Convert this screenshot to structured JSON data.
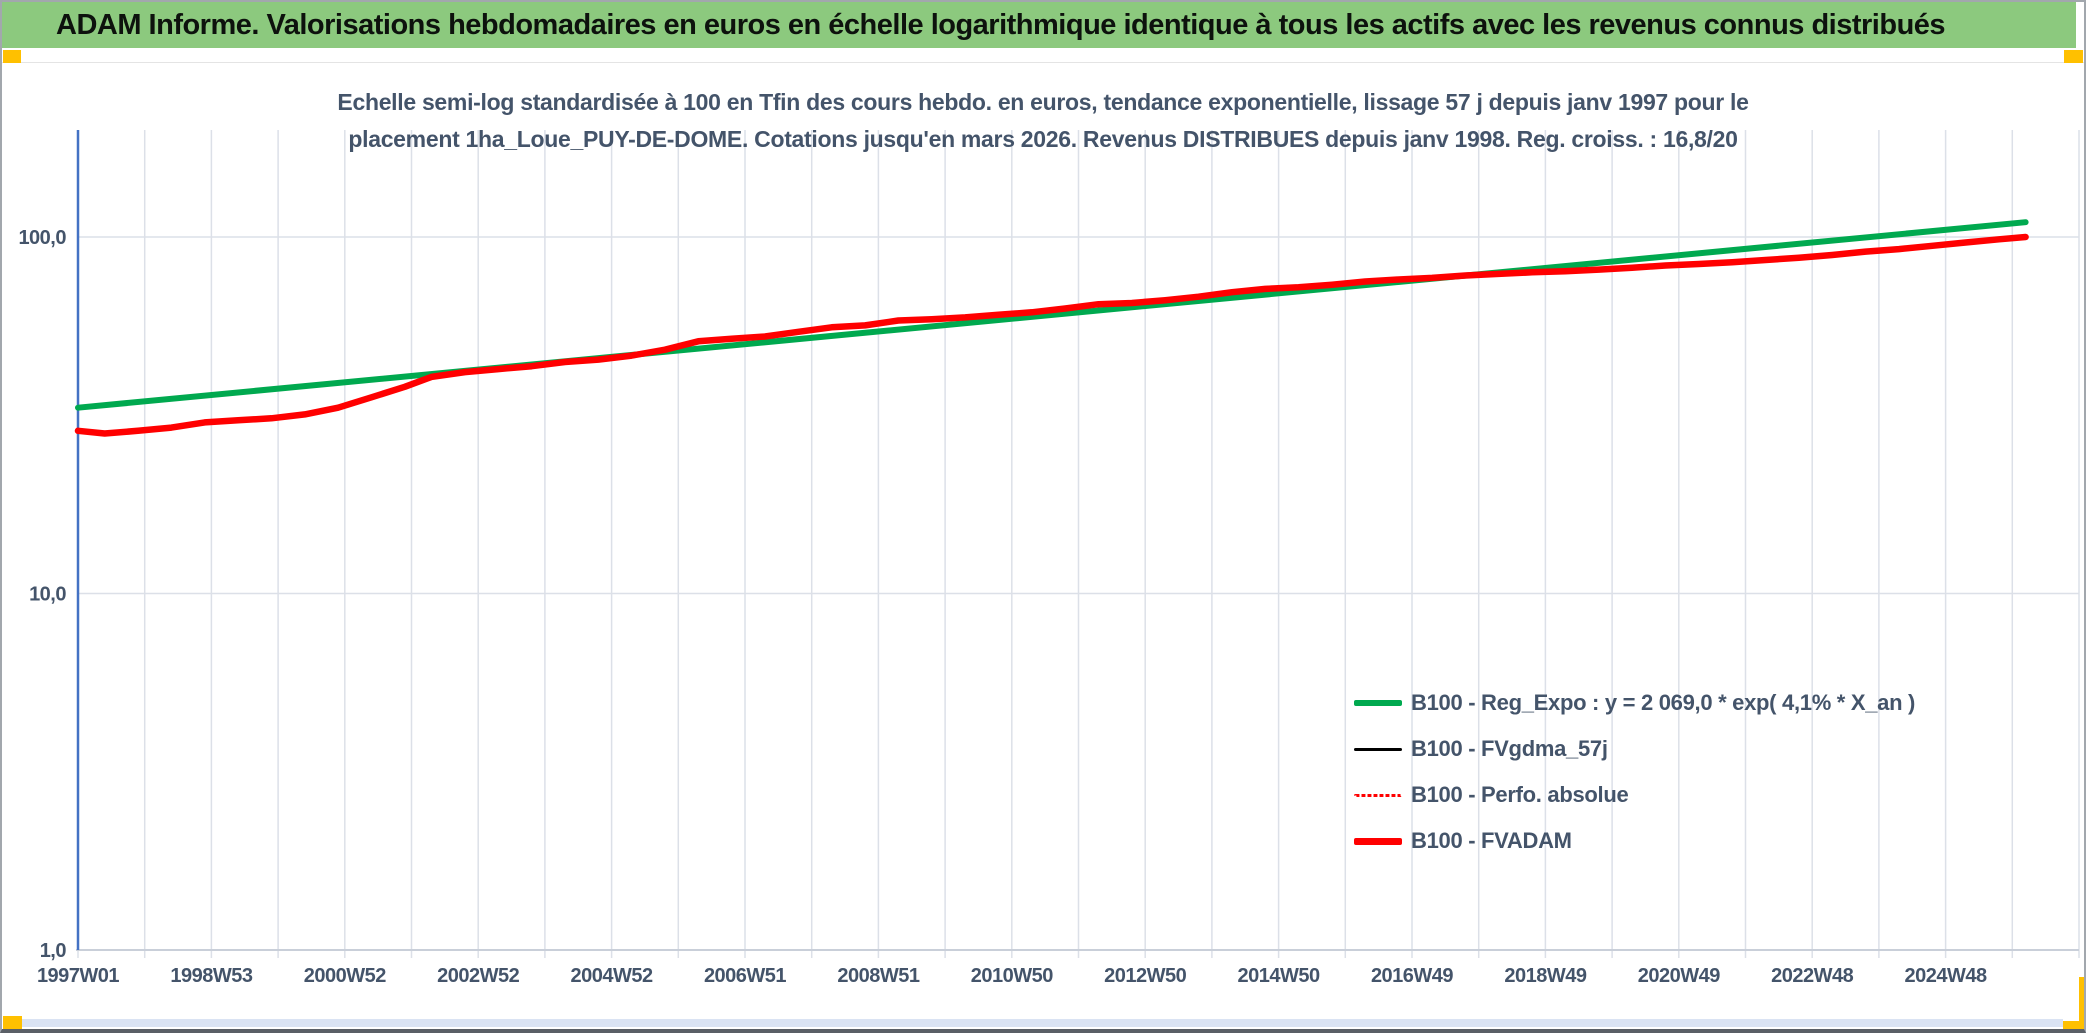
{
  "banner": {
    "title": "ADAM Informe. Valorisations hebdomadaires en euros en échelle logarithmique identique à tous les actifs avec les revenus connus distribués",
    "bg_color": "#8cc97e",
    "accent_color": "#ffc000"
  },
  "chart": {
    "subtitle_line1": "Echelle semi-log standardisée à 100 en Tfin des cours hebdo. en euros, tendance exponentielle, lissage 57 j depuis janv 1997 pour le",
    "subtitle_line2": "placement 1ha_Loue_PUY-DE-DOME. Cotations jusqu'en mars 2026. Revenus DISTRIBUES depuis janv 1998. Reg. croiss. : 16,8/20"
  },
  "legend": {
    "items": [
      {
        "label": "B100 - Reg_Expo : y = 2 069,0 * exp( 4,1% *  X_an )",
        "color": "#00a94f",
        "style": "solid",
        "width": 6
      },
      {
        "label": "B100 - FVgdma_57j",
        "color": "#000000",
        "style": "solid",
        "width": 3
      },
      {
        "label": "B100 - Perfo. absolue",
        "color": "#ff0000",
        "style": "dotted",
        "width": 3
      },
      {
        "label": "B100 - FVADAM",
        "color": "#ff0000",
        "style": "solid",
        "width": 7
      }
    ]
  },
  "chart_data": {
    "type": "line",
    "title": "Echelle semi-log standardisée à 100 en Tfin des cours hebdo. en euros, tendance exponentielle, lissage 57 j depuis janv 1997 pour le placement 1ha_Loue_PUY-DE-DOME. Cotations jusqu'en mars 2026. Revenus DISTRIBUES depuis janv 1998. Reg. croiss. : 16,8/20",
    "x_axis": {
      "type": "weekly-categories",
      "tick_labels": [
        "1997W01",
        "1998W53",
        "2000W52",
        "2002W52",
        "2004W52",
        "2006W51",
        "2008W51",
        "2010W50",
        "2012W50",
        "2014W50",
        "2016W49",
        "2018W49",
        "2020W49",
        "2022W48",
        "2024W48"
      ],
      "tick_step_years": 2,
      "grid_step_years": 1,
      "range_years": [
        1997,
        2027
      ]
    },
    "y_axis": {
      "scale": "log",
      "tick_values": [
        1,
        10,
        100
      ],
      "tick_labels": [
        "1,0",
        "10,0",
        "100,0"
      ],
      "range": [
        1,
        200
      ]
    },
    "legend_position": "inside-bottom-right",
    "grid": true,
    "series": [
      {
        "id": "reg_expo",
        "name": "B100 - Reg_Expo : y = 2 069,0 * exp( 4,1% *  X_an )",
        "color": "#00a94f",
        "style": "solid",
        "width": 6,
        "x": [
          1997.0,
          2026.2
        ],
        "y": [
          33.2,
          110.0
        ]
      },
      {
        "id": "fvgdma_57j",
        "name": "B100 - FVgdma_57j",
        "color": "#000000",
        "style": "solid",
        "width": 3.5,
        "note": "coincides with FVADAM curve (hidden beneath it)",
        "data_ref": "fvadam"
      },
      {
        "id": "perfo_absolue",
        "name": "B100 - Perfo. absolue",
        "color": "#ff0000",
        "style": "dotted",
        "width": 2.5,
        "note": "coincides with FVADAM curve (hidden beneath it)",
        "data_ref": "fvadam"
      },
      {
        "id": "fvadam",
        "name": "B100 - FVADAM",
        "color": "#ff0000",
        "style": "solid",
        "width": 6.5,
        "x": [
          1997.0,
          1997.4,
          1997.9,
          1998.4,
          1998.9,
          1999.4,
          1999.9,
          2000.4,
          2000.9,
          2001.4,
          2001.9,
          2002.3,
          2002.8,
          2003.3,
          2003.8,
          2004.3,
          2004.8,
          2005.3,
          2005.8,
          2006.3,
          2006.8,
          2007.3,
          2007.8,
          2008.3,
          2008.8,
          2009.3,
          2009.8,
          2010.3,
          2010.8,
          2011.3,
          2011.8,
          2012.3,
          2012.8,
          2013.3,
          2013.8,
          2014.3,
          2014.8,
          2015.3,
          2015.8,
          2016.3,
          2016.8,
          2017.3,
          2017.8,
          2018.3,
          2018.8,
          2019.3,
          2019.8,
          2020.3,
          2020.8,
          2021.3,
          2021.8,
          2022.3,
          2022.8,
          2023.3,
          2023.8,
          2024.3,
          2024.8,
          2025.3,
          2025.8,
          2026.2
        ],
        "y": [
          28.6,
          28.1,
          28.6,
          29.2,
          30.2,
          30.6,
          31.0,
          31.8,
          33.2,
          35.5,
          38.0,
          40.5,
          41.8,
          42.6,
          43.4,
          44.6,
          45.3,
          46.5,
          48.3,
          51.0,
          51.8,
          52.6,
          54.2,
          55.8,
          56.5,
          58.3,
          58.8,
          59.5,
          60.5,
          61.5,
          63.0,
          64.8,
          65.3,
          66.5,
          68.0,
          70.0,
          71.5,
          72.3,
          73.5,
          75.0,
          76.0,
          76.8,
          78.0,
          78.8,
          79.6,
          80.2,
          81.0,
          82.0,
          83.2,
          84.0,
          85.0,
          86.2,
          87.5,
          89.0,
          91.0,
          92.5,
          94.5,
          96.5,
          98.5,
          100.0
        ]
      }
    ]
  }
}
